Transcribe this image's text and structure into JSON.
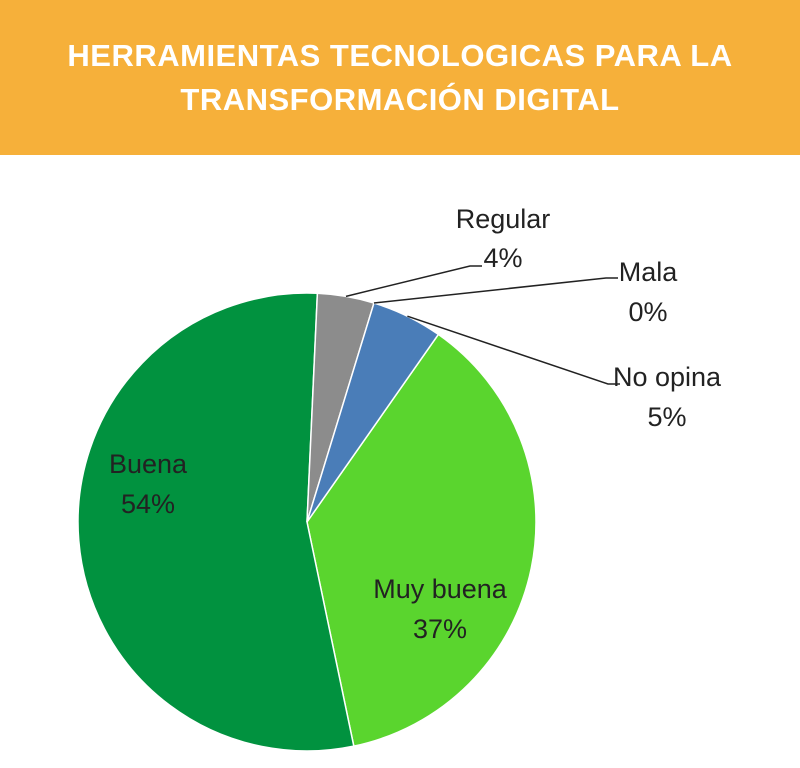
{
  "header": {
    "title_line1": "HERRAMIENTAS TECNOLOGICAS PARA LA",
    "title_line2": "TRANSFORMACIÓN DIGITAL"
  },
  "colors": {
    "header_bg": "#f6b03a",
    "title_text": "#ffffff"
  },
  "chart_data": {
    "type": "pie",
    "title": "HERRAMIENTAS TECNOLOGICAS PARA LA TRANSFORMACIÓN DIGITAL",
    "slices": [
      {
        "label": "Muy buena",
        "value": 37,
        "display": "37%",
        "color": "#5ad52e",
        "label_position": "inside"
      },
      {
        "label": "Buena",
        "value": 54,
        "display": "54%",
        "color": "#01923f",
        "label_position": "inside"
      },
      {
        "label": "Regular",
        "value": 4,
        "display": "4%",
        "color": "#8c8c8c",
        "label_position": "outside"
      },
      {
        "label": "Mala",
        "value": 0,
        "display": "0%",
        "color": "#c0504d",
        "label_position": "outside"
      },
      {
        "label": "No opina",
        "value": 5,
        "display": "5%",
        "color": "#4a7db8",
        "label_position": "outside"
      }
    ]
  }
}
